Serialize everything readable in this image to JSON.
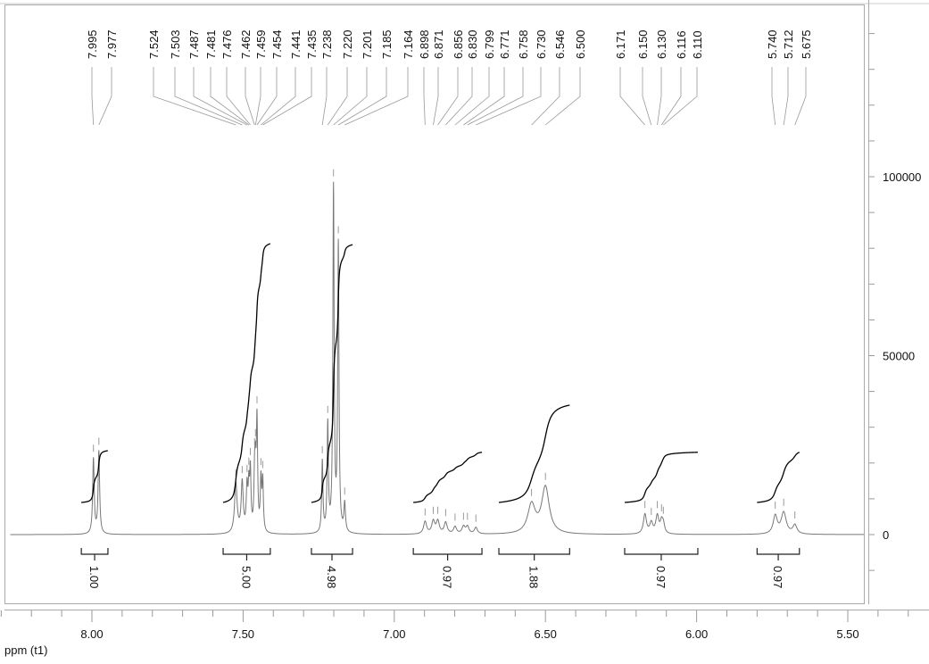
{
  "chart_data": {
    "type": "line",
    "title": "",
    "xlabel": "ppm (t1)",
    "ylabel": "",
    "xlim": [
      8.25,
      5.3
    ],
    "ylim": [
      -20000,
      148000
    ],
    "x_ticks": [
      "8.00",
      "7.50",
      "7.00",
      "6.50",
      "6.00",
      "5.50"
    ],
    "x_tick_values": [
      8.0,
      7.5,
      7.0,
      6.5,
      6.0,
      5.5
    ],
    "y_ticks": [
      "0",
      "50000",
      "100000"
    ],
    "y_tick_values": [
      0,
      50000,
      100000
    ],
    "peaks": [
      {
        "ppm": 7.995,
        "label": "7.995",
        "height": 21000,
        "width": 0.003
      },
      {
        "ppm": 7.977,
        "label": "7.977",
        "height": 23000,
        "width": 0.003
      },
      {
        "ppm": 7.524,
        "label": "7.524",
        "height": 14000,
        "width": 0.005
      },
      {
        "ppm": 7.503,
        "label": "7.503",
        "height": 14000,
        "width": 0.004
      },
      {
        "ppm": 7.487,
        "label": "7.487",
        "height": 12000,
        "width": 0.003
      },
      {
        "ppm": 7.481,
        "label": "7.481",
        "height": 11000,
        "width": 0.0025
      },
      {
        "ppm": 7.476,
        "label": "7.476",
        "height": 16000,
        "width": 0.0025
      },
      {
        "ppm": 7.462,
        "label": "7.462",
        "height": 14000,
        "width": 0.0025
      },
      {
        "ppm": 7.459,
        "label": "7.459",
        "height": 13000,
        "width": 0.0025
      },
      {
        "ppm": 7.454,
        "label": "7.454",
        "height": 30000,
        "width": 0.0025
      },
      {
        "ppm": 7.441,
        "label": "7.441",
        "height": 14000,
        "width": 0.0025
      },
      {
        "ppm": 7.435,
        "label": "7.435",
        "height": 14000,
        "width": 0.0025
      },
      {
        "ppm": 7.238,
        "label": "7.238",
        "height": 20000,
        "width": 0.0025
      },
      {
        "ppm": 7.22,
        "label": "7.220",
        "height": 30000,
        "width": 0.0025
      },
      {
        "ppm": 7.201,
        "label": "7.201",
        "height": 96000,
        "width": 0.0025
      },
      {
        "ppm": 7.185,
        "label": "7.185",
        "height": 80000,
        "width": 0.0025
      },
      {
        "ppm": 7.164,
        "label": "7.164",
        "height": 8000,
        "width": 0.003
      },
      {
        "ppm": 6.898,
        "label": "6.898",
        "height": 3500,
        "width": 0.006
      },
      {
        "ppm": 6.871,
        "label": "6.871",
        "height": 3500,
        "width": 0.006
      },
      {
        "ppm": 6.856,
        "label": "6.856",
        "height": 3500,
        "width": 0.006
      },
      {
        "ppm": 6.83,
        "label": "6.830",
        "height": 3200,
        "width": 0.006
      },
      {
        "ppm": 6.799,
        "label": "6.799",
        "height": 2000,
        "width": 0.006
      },
      {
        "ppm": 6.771,
        "label": "6.771",
        "height": 2000,
        "width": 0.006
      },
      {
        "ppm": 6.758,
        "label": "6.758",
        "height": 2000,
        "width": 0.006
      },
      {
        "ppm": 6.73,
        "label": "6.730",
        "height": 1800,
        "width": 0.006
      },
      {
        "ppm": 6.546,
        "label": "6.546",
        "height": 8000,
        "width": 0.015
      },
      {
        "ppm": 6.5,
        "label": "6.500",
        "height": 13000,
        "width": 0.015
      },
      {
        "ppm": 6.171,
        "label": "6.171",
        "height": 5500,
        "width": 0.006
      },
      {
        "ppm": 6.15,
        "label": "6.150",
        "height": 3000,
        "width": 0.006
      },
      {
        "ppm": 6.13,
        "label": "6.130",
        "height": 5000,
        "width": 0.006
      },
      {
        "ppm": 6.116,
        "label": "6.116",
        "height": 3000,
        "width": 0.005
      },
      {
        "ppm": 6.11,
        "label": "6.110",
        "height": 2500,
        "width": 0.005
      },
      {
        "ppm": 5.74,
        "label": "5.740",
        "height": 5000,
        "width": 0.008
      },
      {
        "ppm": 5.712,
        "label": "5.712",
        "height": 6000,
        "width": 0.01
      },
      {
        "ppm": 5.675,
        "label": "5.675",
        "height": 2500,
        "width": 0.008
      }
    ],
    "integrals": [
      {
        "from": 8.035,
        "to": 7.947,
        "value": "1.00"
      },
      {
        "from": 7.566,
        "to": 7.41,
        "value": "5.00"
      },
      {
        "from": 7.274,
        "to": 7.138,
        "value": "4.98"
      },
      {
        "from": 6.937,
        "to": 6.71,
        "value": "0.97"
      },
      {
        "from": 6.654,
        "to": 6.42,
        "value": "1.88"
      },
      {
        "from": 6.238,
        "to": 5.996,
        "value": "0.97"
      },
      {
        "from": 5.8,
        "to": 5.66,
        "value": "0.97"
      }
    ],
    "colors": {
      "spectrum": "#777777",
      "integral": "#000000",
      "frame": "#aaaaaa"
    }
  }
}
